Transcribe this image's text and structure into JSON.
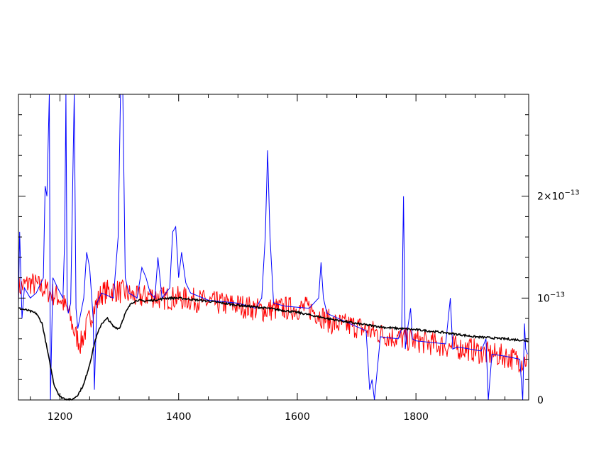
{
  "chart_data": {
    "type": "line",
    "title": "",
    "xlabel": "",
    "ylabel": "",
    "xlim": [
      1130,
      1990
    ],
    "ylim": [
      0,
      3e-13
    ],
    "y_axis_side": "right",
    "grid": false,
    "x_ticks": [
      {
        "value": 1200,
        "label": "1200"
      },
      {
        "value": 1400,
        "label": "1400"
      },
      {
        "value": 1600,
        "label": "1600"
      },
      {
        "value": 1800,
        "label": "1800"
      }
    ],
    "y_ticks": [
      {
        "value": 0,
        "base": "0",
        "exp": ""
      },
      {
        "value": 1e-13,
        "base": "10",
        "exp": "−13"
      },
      {
        "value": 2e-13,
        "base": "2×10",
        "exp": "−13"
      }
    ],
    "series": [
      {
        "color": "#ff0000",
        "x": [
          1130,
          1150,
          1170,
          1185,
          1200,
          1215,
          1225,
          1235,
          1250,
          1270,
          1290,
          1310,
          1330,
          1350,
          1370,
          1400,
          1430,
          1460,
          1500,
          1540,
          1580,
          1620,
          1660,
          1700,
          1720,
          1740,
          1760,
          1780,
          1800,
          1830,
          1860,
          1890,
          1920,
          1950,
          1980,
          1988
        ],
        "y": [
          1.1e-13,
          1.15e-13,
          1.1e-13,
          1.05e-13,
          1e-13,
          8.5e-14,
          6.5e-14,
          5.5e-14,
          8e-14,
          1.05e-13,
          1.08e-13,
          1.05e-13,
          1e-13,
          1.03e-13,
          1e-13,
          1e-13,
          9.8e-14,
          9.5e-14,
          9.3e-14,
          8.8e-14,
          9e-14,
          9e-14,
          7.5e-14,
          7.2e-14,
          6.8e-14,
          6.5e-14,
          6.2e-14,
          6e-14,
          5.8e-14,
          5.5e-14,
          5.2e-14,
          5e-14,
          4.5e-14,
          4.3e-14,
          3.8e-14,
          4e-14
        ],
        "noise": 1.2e-14
      },
      {
        "color": "#0000ff",
        "x": [
          1130,
          1132,
          1136,
          1140,
          1150,
          1160,
          1172,
          1175,
          1178,
          1182,
          1184,
          1188,
          1196,
          1205,
          1208,
          1210,
          1212,
          1214,
          1218,
          1224,
          1227,
          1230,
          1240,
          1245,
          1250,
          1256,
          1258,
          1262,
          1270,
          1290,
          1298,
          1302,
          1306,
          1310,
          1316,
          1330,
          1338,
          1345,
          1352,
          1360,
          1365,
          1372,
          1385,
          1390,
          1395,
          1400,
          1405,
          1412,
          1420,
          1450,
          1500,
          1530,
          1540,
          1546,
          1550,
          1554,
          1560,
          1580,
          1620,
          1636,
          1640,
          1644,
          1650,
          1700,
          1716,
          1722,
          1726,
          1730,
          1740,
          1770,
          1776,
          1779,
          1782,
          1786,
          1791,
          1794,
          1800,
          1850,
          1858,
          1862,
          1870,
          1910,
          1918,
          1922,
          1928,
          1950,
          1975,
          1980,
          1983,
          1985,
          1988
        ],
        "y": [
          9.5e-14,
          1.65e-13,
          8e-14,
          1.1e-13,
          1e-13,
          1.05e-13,
          1.2e-13,
          2.1e-13,
          2e-13,
          3e-13,
          0.0,
          1.2e-13,
          1.1e-13,
          1e-13,
          1.6e-13,
          3e-13,
          1e-13,
          8.5e-14,
          9.5e-14,
          3e-13,
          9e-14,
          7e-14,
          1e-13,
          1.45e-13,
          1.3e-13,
          8e-14,
          1e-14,
          9.5e-14,
          1.05e-13,
          1e-13,
          1.6e-13,
          3e-13,
          3e-13,
          1.2e-13,
          1.05e-13,
          1e-13,
          1.3e-13,
          1.2e-13,
          1.05e-13,
          1e-13,
          1.4e-13,
          1e-13,
          1.1e-13,
          1.65e-13,
          1.7e-13,
          1.2e-13,
          1.45e-13,
          1.15e-13,
          1.05e-13,
          9.8e-14,
          9.5e-14,
          9e-14,
          1e-13,
          1.6e-13,
          2.45e-13,
          1.6e-13,
          9.5e-14,
          9.2e-14,
          9e-14,
          1e-13,
          1.35e-13,
          1e-13,
          8.5e-14,
          7.2e-14,
          6.8e-14,
          1e-14,
          2e-14,
          0.0,
          6.2e-14,
          6e-14,
          7e-14,
          2e-13,
          5e-14,
          7e-14,
          9e-14,
          6e-14,
          5.8e-14,
          5.5e-14,
          1e-13,
          5e-14,
          5.2e-14,
          4.8e-14,
          6e-14,
          0.0,
          4.5e-14,
          4.3e-14,
          4e-14,
          0.0,
          7.5e-14,
          5e-14,
          4.5e-14
        ]
      },
      {
        "color": "#000000",
        "x": [
          1130,
          1145,
          1160,
          1170,
          1180,
          1190,
          1200,
          1210,
          1220,
          1230,
          1240,
          1250,
          1260,
          1270,
          1280,
          1290,
          1300,
          1310,
          1320,
          1330,
          1340,
          1360,
          1380,
          1400,
          1450,
          1500,
          1550,
          1600,
          1650,
          1700,
          1750,
          1800,
          1850,
          1900,
          1950,
          1990
        ],
        "y": [
          9e-14,
          8.8e-14,
          8.5e-14,
          7.5e-14,
          4.5e-14,
          1.5e-14,
          3e-15,
          1e-15,
          0.0,
          5e-15,
          1.5e-14,
          3.5e-14,
          6e-14,
          7.5e-14,
          8e-14,
          7.2e-14,
          7e-14,
          8.5e-14,
          9.5e-14,
          9.8e-14,
          9.7e-14,
          9.8e-14,
          1e-13,
          1e-13,
          9.7e-14,
          9.3e-14,
          9e-14,
          8.6e-14,
          8e-14,
          7.5e-14,
          7.1e-14,
          6.9e-14,
          6.6e-14,
          6.2e-14,
          6e-14,
          5.8e-14
        ],
        "noise": 1e-15
      }
    ]
  }
}
